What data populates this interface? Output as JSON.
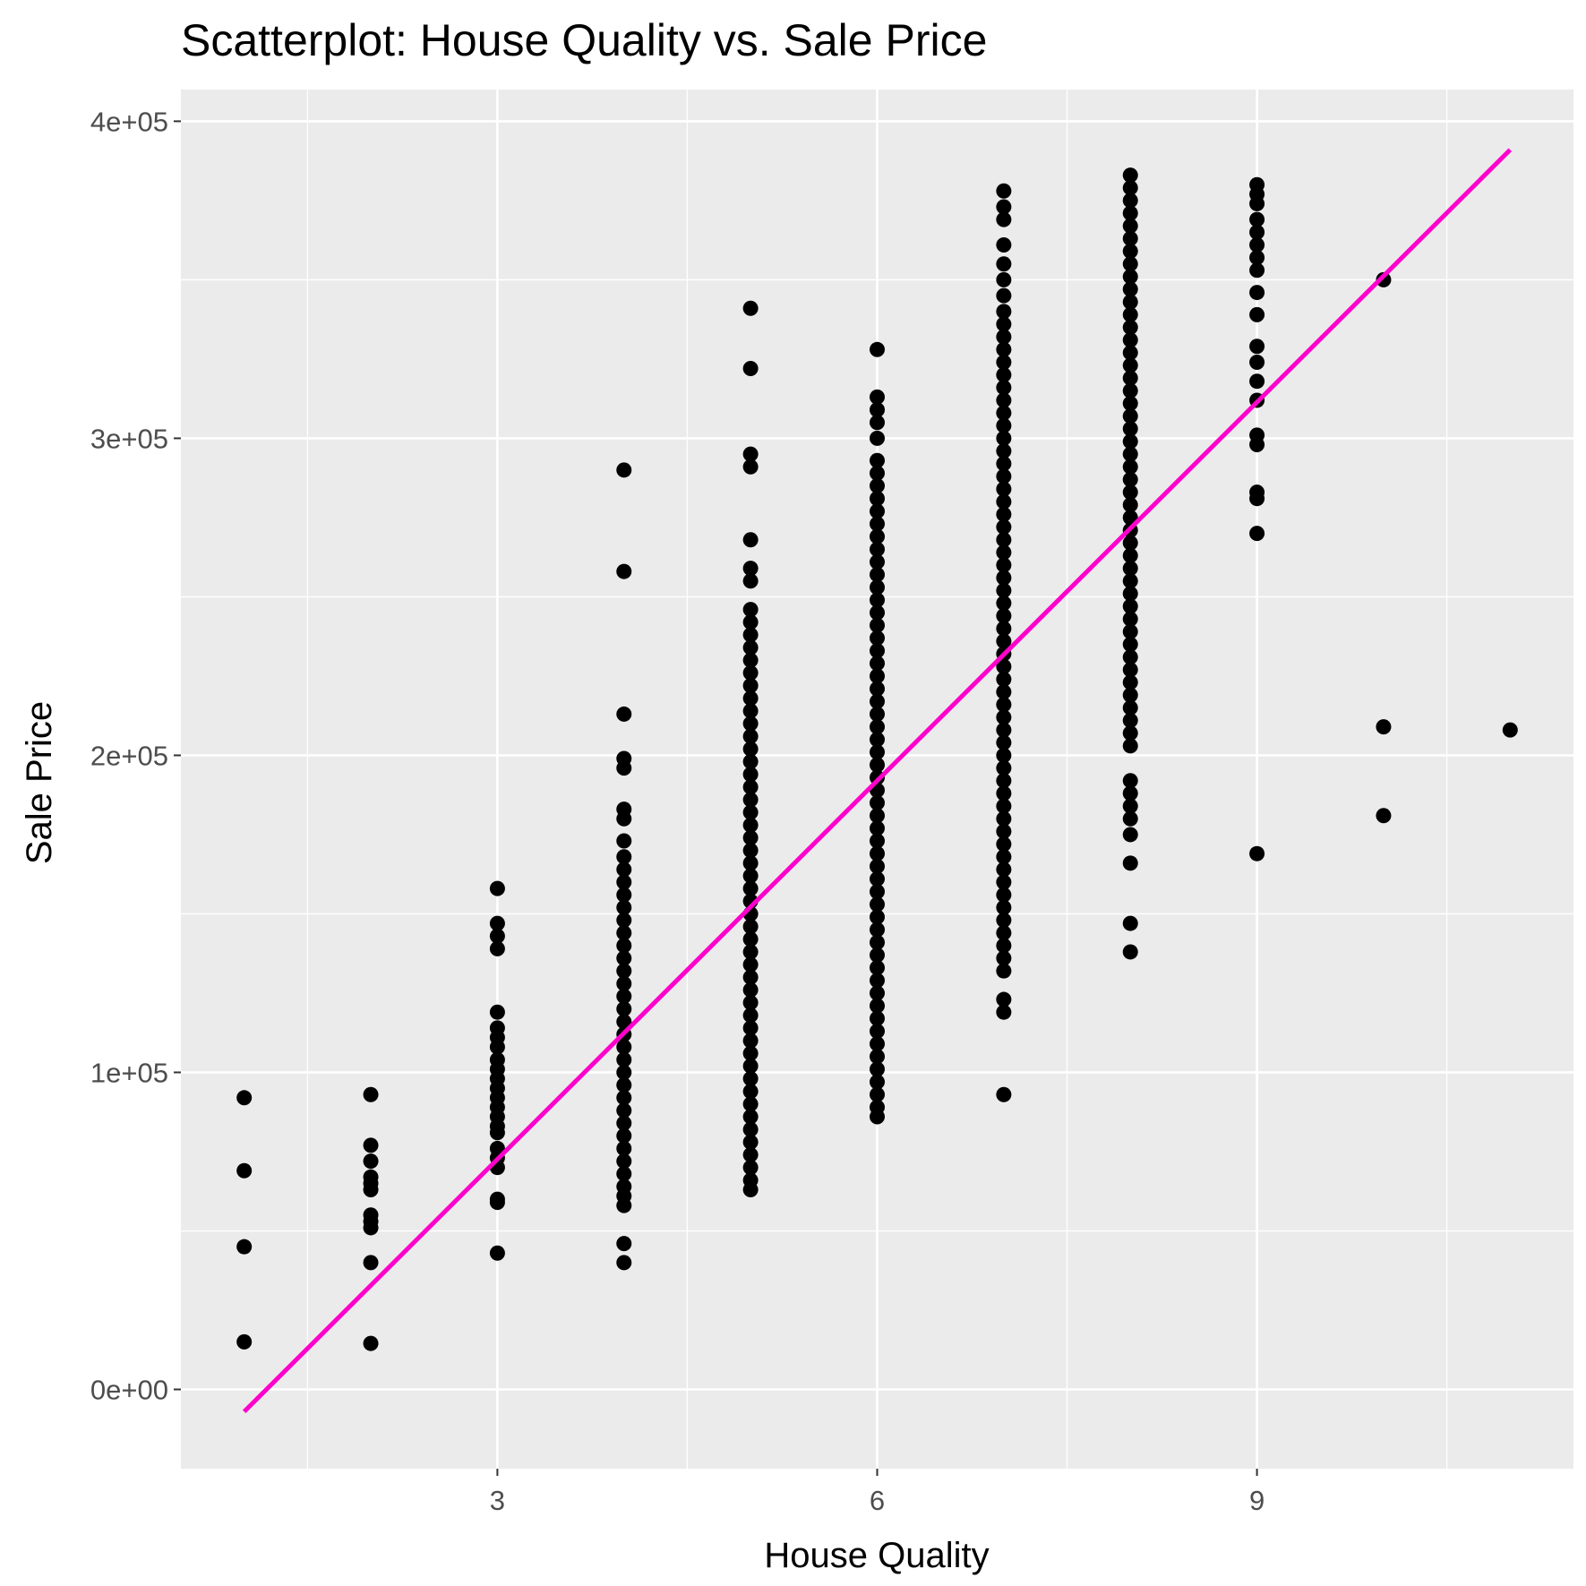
{
  "chart_data": {
    "type": "scatter",
    "title": "Scatterplot: House Quality vs. Sale Price",
    "xlabel": "House Quality",
    "ylabel": "Sale Price",
    "xlim": [
      0.5,
      11.5
    ],
    "ylim": [
      -25000,
      410000
    ],
    "x_ticks": [
      {
        "value": 3,
        "label": "3"
      },
      {
        "value": 6,
        "label": "6"
      },
      {
        "value": 9,
        "label": "9"
      }
    ],
    "y_ticks": [
      {
        "value": 0,
        "label": "0e+00"
      },
      {
        "value": 100000,
        "label": "1e+05"
      },
      {
        "value": 200000,
        "label": "2e+05"
      },
      {
        "value": 300000,
        "label": "3e+05"
      },
      {
        "value": 400000,
        "label": "4e+05"
      }
    ],
    "grid": true,
    "background_color": "#ebebeb",
    "grid_color": "#ffffff",
    "point_color": "#000000",
    "trend_line": {
      "color": "#ff00cc",
      "x": [
        1,
        11
      ],
      "y": [
        -7000,
        391000
      ]
    },
    "points": [
      {
        "x": 1,
        "y": [
          92000,
          69000,
          45000,
          15000
        ]
      },
      {
        "x": 2,
        "y": [
          93000,
          77000,
          72000,
          67000,
          65000,
          63000,
          55000,
          53000,
          51000,
          40000,
          14500
        ]
      },
      {
        "x": 3,
        "y": [
          158000,
          147000,
          143000,
          139000,
          119000,
          114000,
          111000,
          108000,
          104000,
          101000,
          98000,
          95000,
          92000,
          89000,
          86000,
          83000,
          81000,
          76000,
          73000,
          70000,
          60000,
          59000,
          43000
        ]
      },
      {
        "x": 4,
        "y": [
          290000,
          258000,
          213000,
          199000,
          196000,
          183000,
          180000,
          173000,
          168000,
          164000,
          160000,
          156000,
          152000,
          148000,
          144000,
          140000,
          136000,
          132000,
          128000,
          124000,
          120000,
          116000,
          112000,
          108000,
          104000,
          100000,
          96000,
          92000,
          88000,
          84000,
          80000,
          76000,
          72000,
          68000,
          64000,
          61000,
          58000,
          46000,
          40000
        ]
      },
      {
        "x": 5,
        "y": [
          341000,
          322000,
          295000,
          291000,
          268000,
          259000,
          255000,
          246000,
          242000,
          238000,
          234000,
          230000,
          226000,
          222000,
          218000,
          214000,
          210000,
          206000,
          202000,
          198000,
          194000,
          190000,
          186000,
          182000,
          178000,
          174000,
          170000,
          166000,
          162000,
          158000,
          154000,
          150000,
          146000,
          142000,
          138000,
          134000,
          130000,
          126000,
          122000,
          118000,
          114000,
          110000,
          106000,
          102000,
          98000,
          94000,
          90000,
          86000,
          82000,
          78000,
          74000,
          70000,
          66000,
          63000
        ]
      },
      {
        "x": 6,
        "y": [
          328000,
          313000,
          309000,
          305000,
          300000,
          293000,
          289000,
          285000,
          281000,
          277000,
          273000,
          269000,
          265000,
          261000,
          257000,
          253000,
          249000,
          245000,
          241000,
          237000,
          233000,
          229000,
          225000,
          221000,
          217000,
          213000,
          209000,
          205000,
          201000,
          197000,
          193000,
          189000,
          185000,
          181000,
          177000,
          173000,
          169000,
          165000,
          161000,
          157000,
          153000,
          149000,
          145000,
          141000,
          137000,
          133000,
          129000,
          125000,
          121000,
          117000,
          113000,
          109000,
          105000,
          101000,
          97000,
          93000,
          89000,
          86000
        ]
      },
      {
        "x": 7,
        "y": [
          378000,
          373000,
          369000,
          361000,
          355000,
          350000,
          345000,
          340000,
          336000,
          332000,
          328000,
          324000,
          320000,
          316000,
          312000,
          308000,
          304000,
          300000,
          296000,
          292000,
          288000,
          284000,
          280000,
          276000,
          272000,
          268000,
          264000,
          260000,
          256000,
          252000,
          248000,
          244000,
          240000,
          236000,
          232000,
          228000,
          224000,
          220000,
          216000,
          212000,
          208000,
          204000,
          200000,
          196000,
          192000,
          188000,
          184000,
          180000,
          176000,
          172000,
          168000,
          164000,
          160000,
          156000,
          152000,
          148000,
          144000,
          140000,
          136000,
          132000,
          123000,
          119000,
          93000
        ]
      },
      {
        "x": 8,
        "y": [
          383000,
          379000,
          375000,
          371000,
          367000,
          363000,
          359000,
          355000,
          351000,
          347000,
          343000,
          339000,
          335000,
          331000,
          327000,
          323000,
          319000,
          315000,
          311000,
          307000,
          303000,
          299000,
          295000,
          291000,
          287000,
          283000,
          279000,
          275000,
          271000,
          267000,
          263000,
          259000,
          255000,
          251000,
          247000,
          243000,
          239000,
          235000,
          231000,
          227000,
          223000,
          219000,
          215000,
          211000,
          207000,
          203000,
          192000,
          188000,
          184000,
          180000,
          175000,
          166000,
          147000,
          138000
        ]
      },
      {
        "x": 9,
        "y": [
          380000,
          377000,
          374000,
          369000,
          365000,
          361000,
          357000,
          353000,
          346000,
          339000,
          329000,
          324000,
          318000,
          312000,
          301000,
          298000,
          283000,
          281000,
          270000,
          169000
        ]
      },
      {
        "x": 10,
        "y": [
          350000,
          209000,
          181000
        ]
      },
      {
        "x": 11,
        "y": [
          208000
        ]
      }
    ]
  }
}
